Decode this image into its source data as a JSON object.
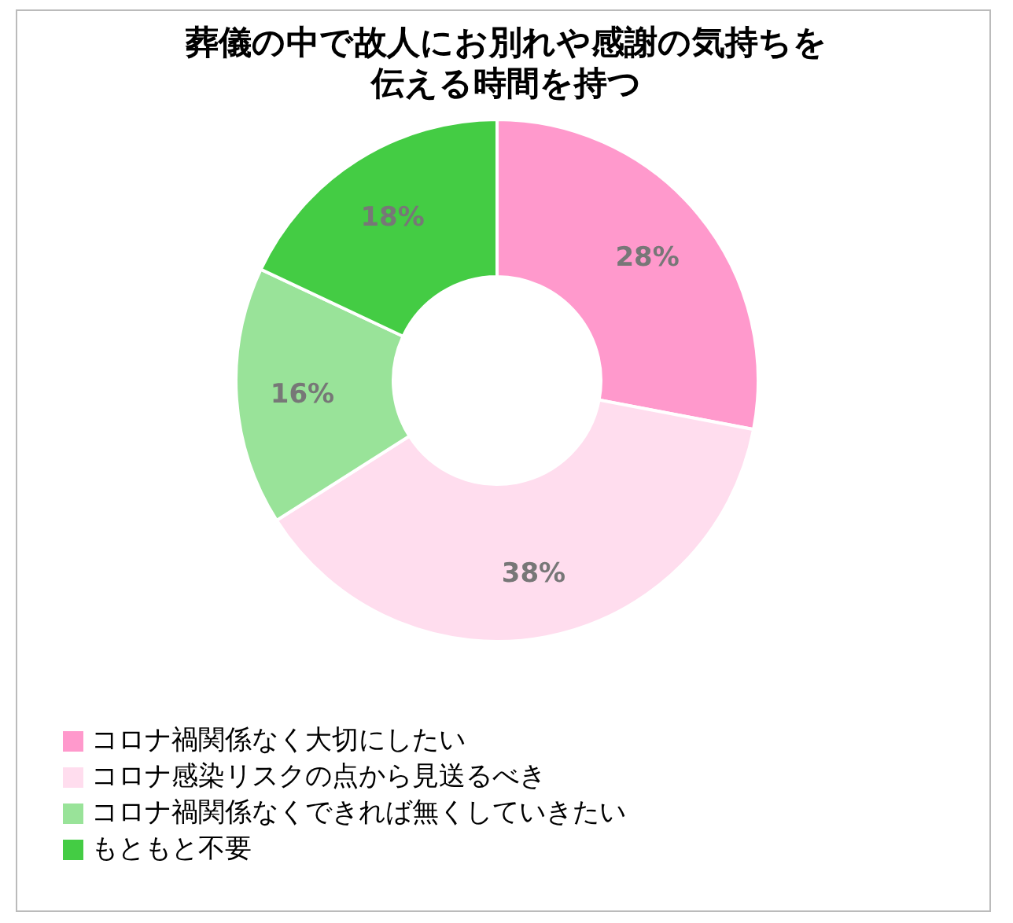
{
  "chart_data": {
    "type": "donut",
    "title": "葬儀の中で故人にお別れや感謝の気持ちを伝える時間を持つ",
    "categories": [
      "コロナ禍関係なく大切にしたい",
      "コロナ感染リスクの点から見送るべき",
      "コロナ禍関係なくできれば無くしていきたい",
      "もともと不要"
    ],
    "values": [
      28,
      38,
      16,
      18
    ],
    "colors": [
      "#ff99cc",
      "#ffddee",
      "#99e399",
      "#44cc44"
    ],
    "value_labels": [
      "28%",
      "38%",
      "16%",
      "18%"
    ],
    "legend": "bottom left"
  }
}
